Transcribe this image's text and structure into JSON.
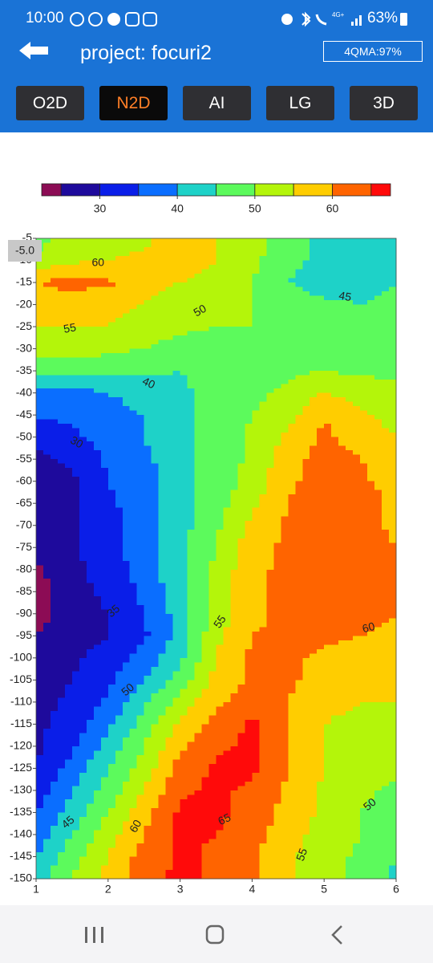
{
  "status_bar": {
    "time": "10:00",
    "network": "4G+",
    "battery": "63%"
  },
  "header": {
    "title": "project: focuri2",
    "badge": "4QMA:97%"
  },
  "tabs": {
    "items": [
      "O2D",
      "N2D",
      "AI",
      "LG",
      "3D"
    ],
    "active": 1
  },
  "chart_data": {
    "type": "contour",
    "cursor_label": "-5.0",
    "x": [
      1,
      1.5,
      2,
      2.5,
      3,
      3.5,
      4,
      4.5,
      5,
      5.5,
      6
    ],
    "y": [
      -5,
      -10,
      -15,
      -20,
      -25,
      -30,
      -35,
      -40,
      -45,
      -50,
      -55,
      -60,
      -65,
      -70,
      -75,
      -80,
      -85,
      -90,
      -95,
      -100,
      -105,
      -110,
      -115,
      -120,
      -125,
      -130,
      -135,
      -140,
      -145,
      -150
    ],
    "z": [
      [
        48,
        52,
        53,
        54,
        57,
        55,
        52,
        47,
        43,
        42,
        42
      ],
      [
        51,
        54,
        55,
        56,
        57,
        55,
        51,
        47,
        43,
        42,
        43
      ],
      [
        60,
        62,
        61,
        56,
        55,
        53,
        50,
        45,
        42,
        43,
        45
      ],
      [
        57,
        57,
        56,
        55,
        53,
        52,
        50,
        48,
        46,
        45,
        46
      ],
      [
        55,
        55,
        55,
        53,
        51,
        50,
        50,
        49,
        48,
        47,
        48
      ],
      [
        52,
        52,
        51,
        50,
        48,
        48,
        49,
        49,
        49,
        49,
        49
      ],
      [
        47,
        47,
        47,
        46,
        45,
        47,
        49,
        49,
        50,
        49,
        49
      ],
      [
        38,
        38,
        40,
        42,
        44,
        47,
        49,
        51,
        55,
        53,
        51
      ],
      [
        36,
        36,
        38,
        40,
        44,
        47,
        50,
        53,
        60,
        56,
        53
      ],
      [
        31,
        34,
        37,
        40,
        44,
        47,
        51,
        56,
        61,
        58,
        55
      ],
      [
        29,
        31,
        36,
        39,
        43,
        47,
        51,
        58,
        62,
        60,
        57
      ],
      [
        28,
        29,
        35,
        38,
        43,
        47,
        52,
        59,
        62,
        61,
        58
      ],
      [
        27,
        29,
        34,
        38,
        43,
        48,
        54,
        60,
        63,
        62,
        59
      ],
      [
        27,
        29,
        33,
        37,
        43,
        49,
        56,
        61,
        63,
        62,
        59
      ],
      [
        26,
        29,
        33,
        38,
        44,
        50,
        58,
        61,
        63,
        62,
        60
      ],
      [
        24,
        29,
        32,
        37,
        44,
        51,
        59,
        61,
        63,
        62,
        60
      ],
      [
        23,
        28,
        31,
        36,
        43,
        51,
        59,
        61,
        63,
        62,
        61
      ],
      [
        23,
        28,
        30,
        35,
        42,
        52,
        59,
        61,
        62,
        61,
        60
      ],
      [
        25,
        28,
        30,
        34,
        42,
        54,
        60,
        61,
        61,
        60,
        59
      ],
      [
        26,
        29,
        32,
        37,
        44,
        55,
        61,
        61,
        59,
        58,
        57
      ],
      [
        27,
        30,
        34,
        40,
        47,
        57,
        61,
        61,
        58,
        57,
        56
      ],
      [
        28,
        31,
        36,
        44,
        52,
        59,
        62,
        60,
        56,
        55,
        55
      ],
      [
        29,
        32,
        39,
        47,
        56,
        62,
        66,
        60,
        55,
        54,
        54
      ],
      [
        29,
        34,
        42,
        50,
        59,
        64,
        66,
        60,
        55,
        53,
        53
      ],
      [
        30,
        37,
        45,
        52,
        62,
        66,
        66,
        60,
        55,
        52,
        51
      ],
      [
        32,
        40,
        47,
        55,
        64,
        66,
        64,
        59,
        54,
        51,
        49
      ],
      [
        35,
        42,
        50,
        58,
        66,
        66,
        63,
        58,
        54,
        50,
        47
      ],
      [
        37,
        45,
        53,
        60,
        66,
        65,
        62,
        57,
        53,
        50,
        46
      ],
      [
        40,
        48,
        55,
        62,
        66,
        64,
        61,
        56,
        52,
        49,
        45
      ],
      [
        43,
        50,
        57,
        63,
        66,
        64,
        61,
        56,
        52,
        49,
        44
      ]
    ],
    "xlim": [
      1,
      6
    ],
    "ylim": [
      -150,
      -5
    ],
    "xticks": [
      1,
      2,
      3,
      4,
      5,
      6
    ],
    "yticks": [
      -5,
      -10,
      -15,
      -20,
      -25,
      -30,
      -35,
      -40,
      -45,
      -50,
      -55,
      -60,
      -65,
      -70,
      -75,
      -80,
      -85,
      -90,
      -95,
      -100,
      -105,
      -110,
      -115,
      -120,
      -125,
      -130,
      -135,
      -140,
      -145,
      -150
    ],
    "colorbar": {
      "levels": [
        22.5,
        25,
        30,
        35,
        40,
        45,
        50,
        55,
        60,
        65,
        67.5
      ],
      "colors": [
        "#8c0c55",
        "#1e0a9c",
        "#0a1ee8",
        "#0a6eff",
        "#1ed2c8",
        "#5cfa5c",
        "#b4f50a",
        "#ffcd00",
        "#ff6400",
        "#ff0a0a"
      ],
      "ticks": [
        30,
        40,
        50,
        60
      ]
    },
    "contour_labels": [
      {
        "value": 60,
        "x": 1.86,
        "y": -10.6
      },
      {
        "value": 55,
        "x": 1.47,
        "y": -25.5
      },
      {
        "value": 50,
        "x": 3.28,
        "y": -21.5
      },
      {
        "value": 45,
        "x": 5.29,
        "y": -18.3
      },
      {
        "value": 40,
        "x": 2.56,
        "y": -37.9
      },
      {
        "value": 30,
        "x": 1.56,
        "y": -51.3
      },
      {
        "value": 35,
        "x": 2.08,
        "y": -89.5
      },
      {
        "value": 55,
        "x": 3.56,
        "y": -91.9
      },
      {
        "value": 60,
        "x": 5.62,
        "y": -93.3
      },
      {
        "value": 50,
        "x": 2.28,
        "y": -107.3
      },
      {
        "value": 45,
        "x": 1.45,
        "y": -137.3
      },
      {
        "value": 60,
        "x": 2.39,
        "y": -138.2
      },
      {
        "value": 65,
        "x": 3.62,
        "y": -136.7
      },
      {
        "value": 55,
        "x": 4.7,
        "y": -144.6
      },
      {
        "value": 50,
        "x": 5.64,
        "y": -133.3
      }
    ]
  }
}
